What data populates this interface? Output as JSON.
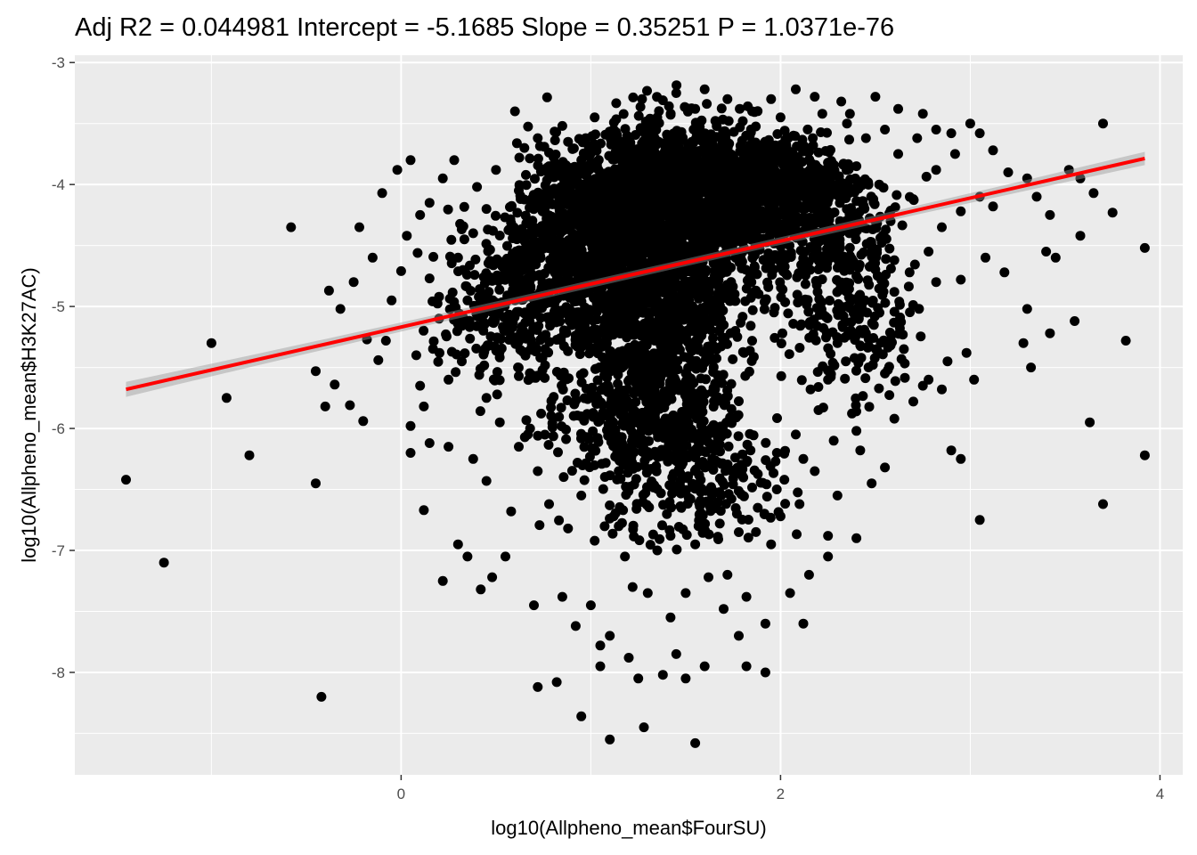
{
  "chart_data": {
    "type": "scatter",
    "title": "Adj R2 =  0.044981 Intercept = -5.1685  Slope = 0.35251  P = 1.0371e-76",
    "xlabel": "log10(Allpheno_mean$FourSU)",
    "ylabel": "log10(Allpheno_mean$H3K27AC)",
    "xlim": [
      -1.72,
      4.12
    ],
    "ylim": [
      -8.84,
      -2.94
    ],
    "x_ticks": [
      0,
      2,
      4
    ],
    "x_tick_labels": [
      "0",
      "2",
      "4"
    ],
    "x_minor_ticks": [
      -1,
      1,
      3
    ],
    "y_ticks": [
      -8,
      -7,
      -6,
      -5,
      -4,
      -3
    ],
    "y_tick_labels": [
      "-8",
      "-7",
      "-6",
      "-5",
      "-4",
      "-3"
    ],
    "y_minor_ticks": [
      -8.5,
      -7.5,
      -6.5,
      -5.5,
      -4.5,
      -3.5
    ],
    "grid": true,
    "regression": {
      "intercept": -5.1685,
      "slope": 0.35251,
      "x_range": [
        -1.45,
        3.92
      ],
      "color": "#ff0000"
    },
    "point_color": "#000000",
    "panel_background": "#ebebeb",
    "points": {
      "outliers": [
        [
          -1.45,
          -6.42
        ],
        [
          -1.25,
          -7.1
        ],
        [
          -1.0,
          -5.3
        ],
        [
          -0.92,
          -5.75
        ],
        [
          -0.8,
          -6.22
        ],
        [
          -0.58,
          -4.35
        ],
        [
          -0.45,
          -6.45
        ],
        [
          -0.45,
          -5.53
        ],
        [
          -0.42,
          -8.2
        ],
        [
          -0.38,
          -4.87
        ],
        [
          -0.35,
          -5.64
        ],
        [
          -0.32,
          -5.02
        ],
        [
          -0.27,
          -5.81
        ],
        [
          -0.22,
          -4.35
        ],
        [
          -0.4,
          -5.82
        ],
        [
          -0.2,
          -5.94
        ],
        [
          -0.18,
          -5.27
        ],
        [
          -0.12,
          -5.44
        ],
        [
          -0.1,
          -4.07
        ],
        [
          -0.08,
          -5.28
        ],
        [
          -0.02,
          -3.88
        ],
        [
          0.05,
          -3.8
        ],
        [
          0.1,
          -4.25
        ],
        [
          0.05,
          -6.2
        ],
        [
          0.12,
          -5.82
        ],
        [
          0.1,
          -5.65
        ],
        [
          0.03,
          -4.42
        ],
        [
          0.0,
          -4.71
        ],
        [
          0.15,
          -4.77
        ],
        [
          0.2,
          -4.92
        ],
        [
          0.28,
          -3.8
        ],
        [
          0.12,
          -6.67
        ],
        [
          0.22,
          -7.25
        ],
        [
          0.3,
          -6.95
        ],
        [
          0.35,
          -7.05
        ],
        [
          0.38,
          -6.25
        ],
        [
          0.45,
          -6.43
        ],
        [
          0.4,
          -4.02
        ],
        [
          0.5,
          -3.88
        ],
        [
          0.58,
          -4.77
        ],
        [
          0.65,
          -3.7
        ],
        [
          0.6,
          -3.4
        ],
        [
          0.72,
          -3.62
        ],
        [
          0.85,
          -3.52
        ],
        [
          1.02,
          -3.45
        ],
        [
          1.12,
          -3.55
        ],
        [
          1.2,
          -3.65
        ],
        [
          1.27,
          -3.3
        ],
        [
          1.45,
          -3.25
        ],
        [
          1.6,
          -3.22
        ],
        [
          1.72,
          -3.3
        ],
        [
          1.95,
          -3.3
        ],
        [
          2.08,
          -3.22
        ],
        [
          2.18,
          -3.28
        ],
        [
          2.32,
          -3.32
        ],
        [
          2.5,
          -3.28
        ],
        [
          2.62,
          -3.38
        ],
        [
          2.75,
          -3.42
        ],
        [
          2.82,
          -3.55
        ],
        [
          2.9,
          -3.58
        ],
        [
          3.0,
          -3.5
        ],
        [
          3.05,
          -3.58
        ],
        [
          3.12,
          -3.72
        ],
        [
          3.05,
          -4.1
        ],
        [
          3.12,
          -4.18
        ],
        [
          3.2,
          -3.9
        ],
        [
          3.3,
          -3.95
        ],
        [
          3.35,
          -4.1
        ],
        [
          3.42,
          -4.25
        ],
        [
          3.52,
          -3.88
        ],
        [
          3.58,
          -3.95
        ],
        [
          3.65,
          -4.07
        ],
        [
          3.7,
          -3.5
        ],
        [
          3.75,
          -4.23
        ],
        [
          3.58,
          -4.42
        ],
        [
          3.4,
          -4.55
        ],
        [
          3.45,
          -4.6
        ],
        [
          3.3,
          -5.02
        ],
        [
          3.28,
          -5.3
        ],
        [
          3.32,
          -5.5
        ],
        [
          3.42,
          -5.22
        ],
        [
          3.55,
          -5.12
        ],
        [
          3.63,
          -5.95
        ],
        [
          3.7,
          -6.62
        ],
        [
          3.92,
          -4.52
        ],
        [
          3.92,
          -6.22
        ],
        [
          3.82,
          -5.28
        ],
        [
          3.18,
          -4.72
        ],
        [
          3.08,
          -4.6
        ],
        [
          3.02,
          -5.6
        ],
        [
          2.98,
          -5.38
        ],
        [
          2.95,
          -6.25
        ],
        [
          2.9,
          -6.18
        ],
        [
          3.05,
          -6.75
        ],
        [
          2.85,
          -5.68
        ],
        [
          2.75,
          -5.65
        ],
        [
          2.82,
          -4.8
        ],
        [
          2.95,
          -4.78
        ],
        [
          2.6,
          -4.62
        ],
        [
          2.52,
          -5.05
        ],
        [
          2.45,
          -5.22
        ],
        [
          2.4,
          -6.02
        ],
        [
          2.25,
          -7.05
        ],
        [
          2.15,
          -7.2
        ],
        [
          2.05,
          -7.35
        ],
        [
          2.0,
          -6.72
        ],
        [
          1.92,
          -7.6
        ],
        [
          1.82,
          -7.38
        ],
        [
          1.72,
          -7.2
        ],
        [
          1.62,
          -7.22
        ],
        [
          1.5,
          -7.35
        ],
        [
          1.42,
          -7.55
        ],
        [
          1.3,
          -7.35
        ],
        [
          1.22,
          -7.3
        ],
        [
          1.1,
          -7.7
        ],
        [
          1.05,
          -7.78
        ],
        [
          1.2,
          -7.88
        ],
        [
          1.25,
          -8.05
        ],
        [
          1.38,
          -8.02
        ],
        [
          1.5,
          -8.05
        ],
        [
          1.28,
          -8.45
        ],
        [
          1.55,
          -8.58
        ],
        [
          1.1,
          -8.55
        ],
        [
          0.95,
          -8.36
        ],
        [
          0.82,
          -8.08
        ],
        [
          0.72,
          -8.12
        ],
        [
          0.58,
          -6.68
        ],
        [
          0.55,
          -7.05
        ],
        [
          0.48,
          -7.22
        ],
        [
          0.42,
          -7.32
        ],
        [
          0.7,
          -7.45
        ],
        [
          0.85,
          -7.38
        ],
        [
          0.92,
          -7.62
        ],
        [
          1.0,
          -7.45
        ],
        [
          1.05,
          -7.95
        ],
        [
          1.45,
          -7.85
        ],
        [
          1.6,
          -7.95
        ],
        [
          1.82,
          -7.95
        ],
        [
          1.92,
          -8.0
        ],
        [
          1.78,
          -7.7
        ],
        [
          1.7,
          -7.48
        ],
        [
          2.12,
          -7.6
        ],
        [
          2.25,
          -6.88
        ],
        [
          2.4,
          -6.9
        ],
        [
          2.1,
          -6.62
        ],
        [
          2.18,
          -6.35
        ],
        [
          2.3,
          -6.55
        ],
        [
          2.42,
          -6.18
        ],
        [
          2.48,
          -6.45
        ],
        [
          2.55,
          -6.32
        ],
        [
          2.6,
          -5.92
        ],
        [
          2.7,
          -5.78
        ],
        [
          2.78,
          -5.6
        ],
        [
          2.88,
          -5.45
        ],
        [
          2.65,
          -5.35
        ],
        [
          2.55,
          -5.55
        ],
        [
          2.6,
          -4.88
        ],
        [
          2.68,
          -4.72
        ],
        [
          2.78,
          -4.55
        ],
        [
          2.85,
          -4.35
        ],
        [
          2.95,
          -4.22
        ],
        [
          2.7,
          -4.12
        ],
        [
          2.82,
          -3.88
        ],
        [
          2.92,
          -3.75
        ],
        [
          2.62,
          -3.75
        ],
        [
          2.72,
          -3.62
        ],
        [
          2.55,
          -3.55
        ],
        [
          0.05,
          -5.98
        ],
        [
          0.15,
          -6.12
        ],
        [
          0.25,
          -6.15
        ],
        [
          0.25,
          -5.6
        ],
        [
          0.32,
          -5.45
        ],
        [
          0.2,
          -5.1
        ],
        [
          0.3,
          -4.6
        ],
        [
          0.38,
          -4.4
        ],
        [
          0.45,
          -4.2
        ],
        [
          0.35,
          -4.95
        ],
        [
          0.55,
          -5.2
        ],
        [
          0.45,
          -5.75
        ],
        [
          0.52,
          -5.95
        ],
        [
          0.62,
          -6.15
        ],
        [
          0.68,
          -6.0
        ],
        [
          0.72,
          -6.35
        ],
        [
          0.78,
          -6.62
        ],
        [
          0.88,
          -6.82
        ],
        [
          0.95,
          -6.55
        ],
        [
          1.02,
          -6.92
        ],
        [
          1.12,
          -6.72
        ],
        [
          1.18,
          -7.05
        ],
        [
          1.35,
          -7.0
        ],
        [
          1.42,
          -6.88
        ],
        [
          1.55,
          -6.95
        ],
        [
          1.68,
          -6.78
        ],
        [
          1.78,
          -6.85
        ],
        [
          1.88,
          -6.65
        ],
        [
          1.95,
          -6.95
        ],
        [
          2.02,
          -6.42
        ],
        [
          2.08,
          -6.05
        ],
        [
          -0.05,
          -4.95
        ],
        [
          0.08,
          -5.4
        ],
        [
          -0.15,
          -4.6
        ],
        [
          -0.25,
          -4.8
        ],
        [
          0.15,
          -4.15
        ],
        [
          0.22,
          -3.95
        ],
        [
          0.62,
          -4.05
        ],
        [
          0.7,
          -4.35
        ],
        [
          2.35,
          -3.5
        ],
        [
          2.45,
          -3.62
        ],
        [
          2.4,
          -3.85
        ],
        [
          2.52,
          -4.0
        ],
        [
          2.58,
          -4.3
        ],
        [
          2.48,
          -4.5
        ],
        [
          2.4,
          -4.75
        ],
        [
          2.35,
          -5.0
        ],
        [
          2.3,
          -5.3
        ],
        [
          2.25,
          -5.6
        ],
        [
          2.2,
          -5.85
        ],
        [
          2.28,
          -6.1
        ],
        [
          2.12,
          -6.25
        ],
        [
          1.98,
          -6.5
        ],
        [
          0.88,
          -3.65
        ],
        [
          0.95,
          -3.8
        ],
        [
          0.78,
          -3.85
        ],
        [
          1.35,
          -3.45
        ],
        [
          1.55,
          -3.38
        ],
        [
          1.85,
          -3.4
        ],
        [
          2.0,
          -3.45
        ],
        [
          2.22,
          -3.42
        ]
      ]
    }
  }
}
